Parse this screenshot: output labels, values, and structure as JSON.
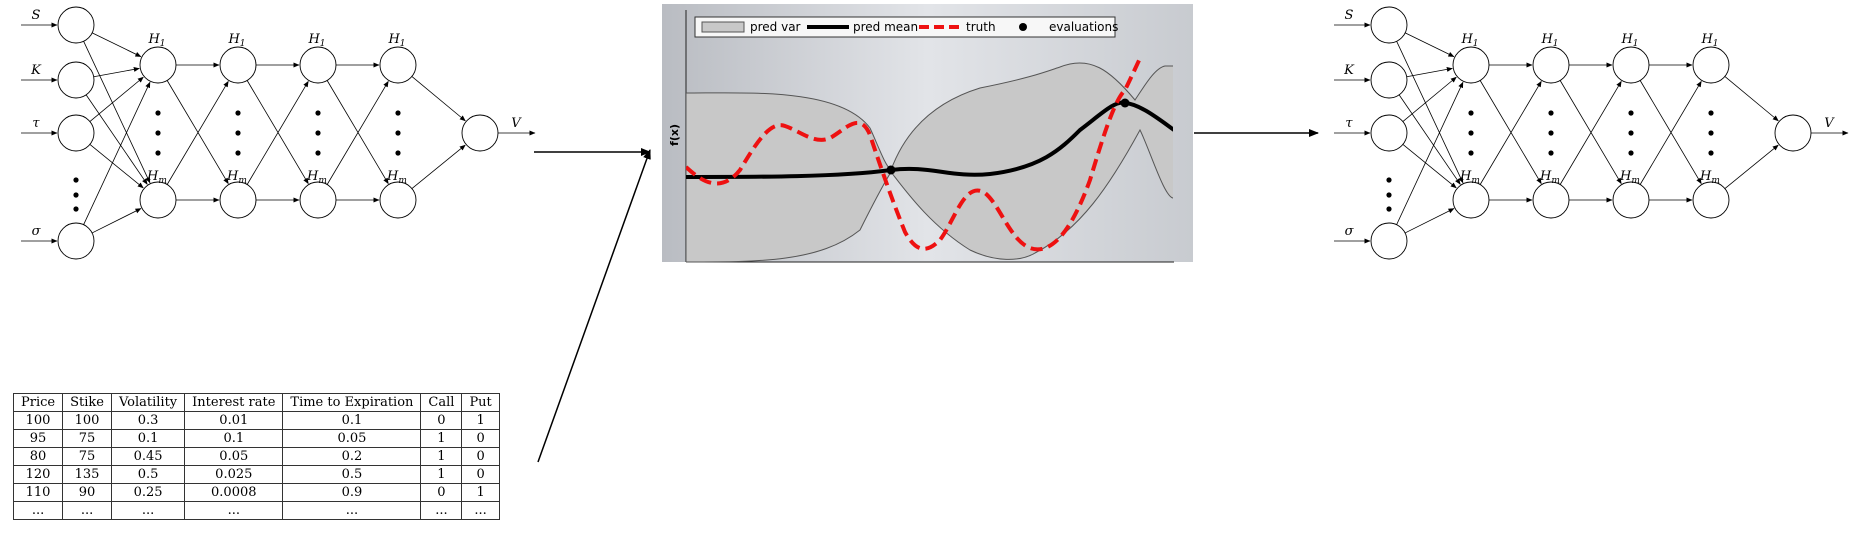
{
  "networks": {
    "inputs": [
      {
        "symbol": "S"
      },
      {
        "symbol": "K"
      },
      {
        "symbol": "τ"
      },
      {
        "symbol": "σ"
      }
    ],
    "hidden_top": {
      "base": "H",
      "sub": "1"
    },
    "hidden_bottom": {
      "base": "H",
      "sub": "m"
    },
    "output": {
      "symbol": "V"
    }
  },
  "gp_plot": {
    "ylabel": "f(x)",
    "legend": [
      {
        "label": "pred var",
        "color": "#c8c8c8"
      },
      {
        "label": "pred mean",
        "color": "#000000"
      },
      {
        "label": "truth",
        "color": "#ee1111"
      },
      {
        "label": "evaluations",
        "color": "#000000"
      }
    ]
  },
  "table": {
    "columns": [
      "Price",
      "Stike",
      "Volatility",
      "Interest rate",
      "Time to Expiration",
      "Call",
      "Put"
    ],
    "rows": [
      [
        "100",
        "100",
        "0.3",
        "0.01",
        "0.1",
        "0",
        "1"
      ],
      [
        "95",
        "75",
        "0.1",
        "0.1",
        "0.05",
        "1",
        "0"
      ],
      [
        "80",
        "75",
        "0.45",
        "0.05",
        "0.2",
        "1",
        "0"
      ],
      [
        "120",
        "135",
        "0.5",
        "0.025",
        "0.5",
        "1",
        "0"
      ],
      [
        "110",
        "90",
        "0.25",
        "0.0008",
        "0.9",
        "0",
        "1"
      ],
      [
        "...",
        "...",
        "...",
        "...",
        "...",
        "...",
        "..."
      ]
    ]
  }
}
